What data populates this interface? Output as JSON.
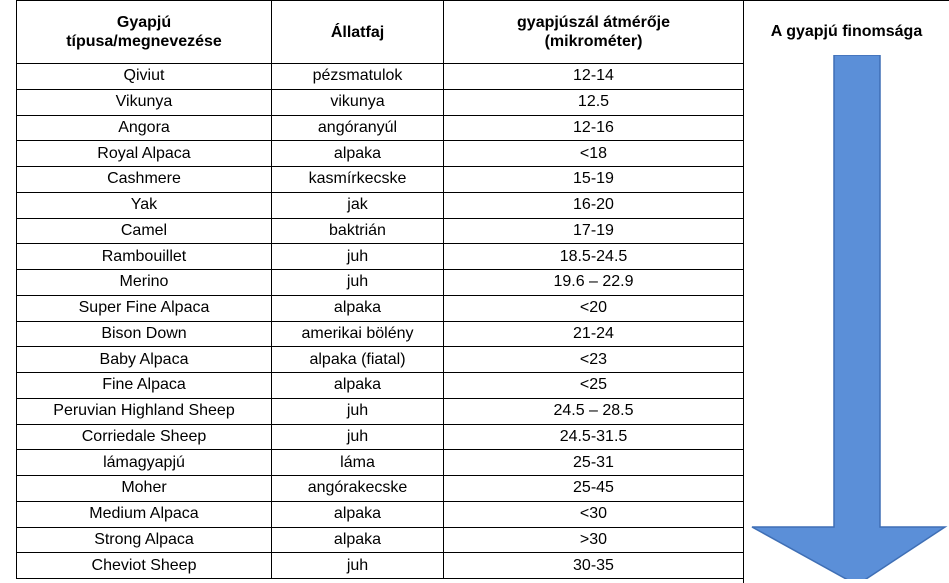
{
  "table": {
    "header": [
      [
        "Gyapjú",
        "típusa/megnevezése"
      ],
      [
        "Állatfaj"
      ],
      [
        "gyapjúszál átmérője",
        "(mikrométer)"
      ]
    ],
    "side_label": "A gyapjú finomsága",
    "rows": [
      [
        "Qiviut",
        "pézsmatulok",
        "12-14"
      ],
      [
        "Vikunya",
        "vikunya",
        "12.5"
      ],
      [
        "Angora",
        "angóranyúl",
        "12-16"
      ],
      [
        "Royal Alpaca",
        "alpaka",
        "<18"
      ],
      [
        "Cashmere",
        "kasmírkecske",
        "15-19"
      ],
      [
        "Yak",
        "jak",
        "16-20"
      ],
      [
        "Camel",
        "baktrián",
        "17-19"
      ],
      [
        "Rambouillet",
        "juh",
        "18.5-24.5"
      ],
      [
        "Merino",
        "juh",
        "19.6 – 22.9"
      ],
      [
        "Super Fine Alpaca",
        "alpaka",
        "<20"
      ],
      [
        "Bison Down",
        "amerikai bölény",
        "21-24"
      ],
      [
        "Baby Alpaca",
        "alpaka (fiatal)",
        "<23"
      ],
      [
        "Fine Alpaca",
        "alpaka",
        "<25"
      ],
      [
        "Peruvian Highland Sheep",
        "juh",
        "24.5 – 28.5"
      ],
      [
        "Corriedale Sheep",
        "juh",
        "24.5-31.5"
      ],
      [
        "lámagyapjú",
        "láma",
        "25-31"
      ],
      [
        "Moher",
        "angórakecske",
        "25-45"
      ],
      [
        "Medium Alpaca",
        "alpaka",
        "<30"
      ],
      [
        "Strong Alpaca",
        "alpaka",
        ">30"
      ],
      [
        "Cheviot Sheep",
        "juh",
        "30-35"
      ]
    ]
  }
}
